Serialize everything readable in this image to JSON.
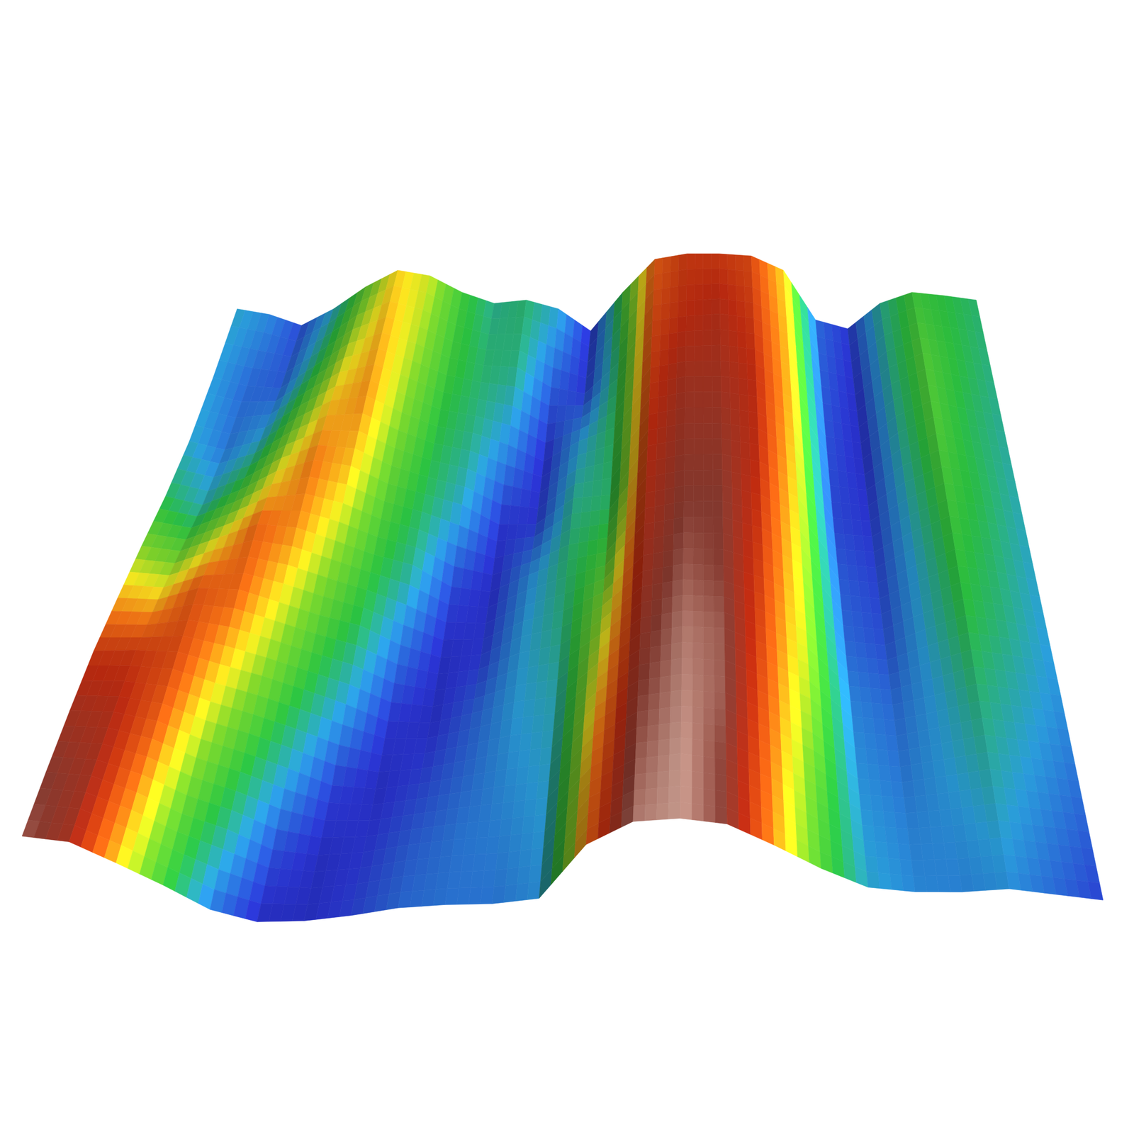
{
  "chart_data": {
    "type": "surface",
    "zlim": [
      0,
      100
    ],
    "z": [
      [
        30,
        25,
        15,
        30,
        50,
        65,
        60,
        45,
        35,
        38,
        30,
        10,
        45,
        75,
        80,
        80,
        78,
        65,
        20,
        12,
        35,
        45,
        42,
        38
      ],
      [
        28,
        20,
        18,
        38,
        58,
        68,
        58,
        45,
        38,
        36,
        18,
        12,
        40,
        78,
        82,
        84,
        80,
        66,
        18,
        10,
        35,
        48,
        42,
        36
      ],
      [
        30,
        22,
        30,
        50,
        66,
        70,
        55,
        42,
        36,
        25,
        10,
        28,
        40,
        80,
        86,
        86,
        82,
        66,
        16,
        10,
        34,
        48,
        40,
        34
      ],
      [
        40,
        32,
        45,
        62,
        72,
        66,
        50,
        40,
        30,
        12,
        12,
        35,
        38,
        82,
        88,
        88,
        82,
        64,
        15,
        12,
        32,
        46,
        40,
        32
      ],
      [
        55,
        50,
        62,
        74,
        70,
        58,
        45,
        35,
        15,
        10,
        25,
        38,
        45,
        84,
        90,
        90,
        80,
        62,
        18,
        14,
        30,
        44,
        38,
        30
      ],
      [
        68,
        66,
        76,
        74,
        62,
        50,
        40,
        22,
        10,
        12,
        28,
        36,
        55,
        86,
        92,
        90,
        78,
        60,
        20,
        16,
        30,
        42,
        36,
        28
      ],
      [
        80,
        80,
        78,
        66,
        55,
        42,
        28,
        12,
        10,
        18,
        28,
        32,
        62,
        88,
        94,
        92,
        76,
        58,
        24,
        20,
        28,
        38,
        32,
        26
      ],
      [
        86,
        84,
        75,
        58,
        45,
        30,
        14,
        10,
        14,
        20,
        26,
        30,
        68,
        90,
        95,
        92,
        74,
        54,
        26,
        22,
        28,
        34,
        28,
        22
      ],
      [
        90,
        86,
        70,
        50,
        35,
        16,
        10,
        12,
        18,
        22,
        24,
        28,
        72,
        92,
        96,
        90,
        72,
        50,
        28,
        24,
        26,
        30,
        24,
        18
      ],
      [
        92,
        86,
        66,
        45,
        22,
        10,
        10,
        14,
        20,
        22,
        22,
        26,
        74,
        94,
        96,
        90,
        70,
        48,
        30,
        25,
        24,
        26,
        20,
        14
      ]
    ]
  }
}
